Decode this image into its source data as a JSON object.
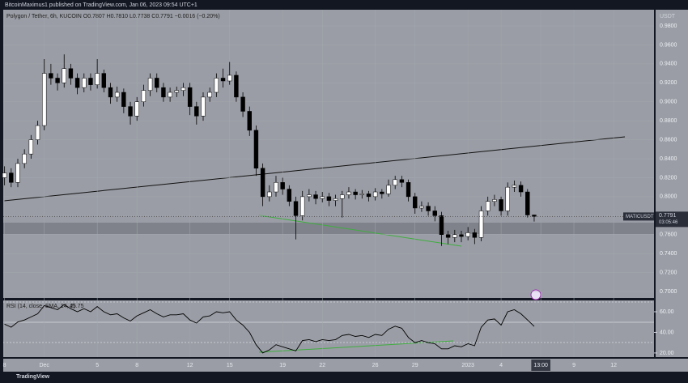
{
  "header": "BitcoinMaximus1 published on TradingView.com, Jan 06, 2023 09:54 UTC+1",
  "footer": "TradingView",
  "chart_data": [
    {
      "type": "candlestick",
      "title": "Polygon / Tether, 6h, KUCOIN  O0.7807  H0.7810  L0.7738  C0.7791  −0.0016 (−0.20%)",
      "axis_unit": "USDT",
      "symbol_label": "MATICUSDT",
      "last_price_label": "0.7791",
      "countdown_label": "03:05:46",
      "up_color": "#ffffff",
      "down_color": "#000000",
      "ohlc": [
        [
          0.82,
          0.832,
          0.812,
          0.825
        ],
        [
          0.825,
          0.83,
          0.81,
          0.815
        ],
        [
          0.815,
          0.84,
          0.81,
          0.835
        ],
        [
          0.835,
          0.85,
          0.83,
          0.845
        ],
        [
          0.845,
          0.865,
          0.84,
          0.86
        ],
        [
          0.86,
          0.88,
          0.855,
          0.875
        ],
        [
          0.875,
          0.945,
          0.87,
          0.93
        ],
        [
          0.93,
          0.94,
          0.918,
          0.925
        ],
        [
          0.925,
          0.93,
          0.912,
          0.92
        ],
        [
          0.92,
          0.95,
          0.915,
          0.935
        ],
        [
          0.935,
          0.94,
          0.918,
          0.925
        ],
        [
          0.925,
          0.93,
          0.908,
          0.915
        ],
        [
          0.915,
          0.93,
          0.91,
          0.925
        ],
        [
          0.925,
          0.93,
          0.912,
          0.918
        ],
        [
          0.918,
          0.945,
          0.914,
          0.93
        ],
        [
          0.93,
          0.934,
          0.91,
          0.915
        ],
        [
          0.915,
          0.92,
          0.898,
          0.905
        ],
        [
          0.905,
          0.916,
          0.9,
          0.91
        ],
        [
          0.91,
          0.914,
          0.888,
          0.895
        ],
        [
          0.895,
          0.9,
          0.876,
          0.885
        ],
        [
          0.885,
          0.905,
          0.88,
          0.9
        ],
        [
          0.9,
          0.918,
          0.895,
          0.912
        ],
        [
          0.912,
          0.93,
          0.906,
          0.925
        ],
        [
          0.925,
          0.93,
          0.91,
          0.915
        ],
        [
          0.915,
          0.92,
          0.9,
          0.905
        ],
        [
          0.905,
          0.915,
          0.9,
          0.91
        ],
        [
          0.91,
          0.916,
          0.905,
          0.912
        ],
        [
          0.912,
          0.92,
          0.906,
          0.915
        ],
        [
          0.915,
          0.92,
          0.886,
          0.895
        ],
        [
          0.895,
          0.9,
          0.876,
          0.885
        ],
        [
          0.885,
          0.91,
          0.88,
          0.905
        ],
        [
          0.905,
          0.915,
          0.9,
          0.91
        ],
        [
          0.91,
          0.93,
          0.905,
          0.925
        ],
        [
          0.925,
          0.935,
          0.915,
          0.922
        ],
        [
          0.922,
          0.942,
          0.918,
          0.928
        ],
        [
          0.928,
          0.932,
          0.9,
          0.905
        ],
        [
          0.905,
          0.91,
          0.884,
          0.89
        ],
        [
          0.89,
          0.895,
          0.864,
          0.87
        ],
        [
          0.87,
          0.875,
          0.822,
          0.83
        ],
        [
          0.83,
          0.835,
          0.79,
          0.8
        ],
        [
          0.8,
          0.812,
          0.795,
          0.805
        ],
        [
          0.805,
          0.822,
          0.8,
          0.815
        ],
        [
          0.815,
          0.82,
          0.802,
          0.808
        ],
        [
          0.808,
          0.812,
          0.79,
          0.795
        ],
        [
          0.795,
          0.8,
          0.755,
          0.78
        ],
        [
          0.78,
          0.806,
          0.775,
          0.8
        ],
        [
          0.8,
          0.808,
          0.795,
          0.802
        ],
        [
          0.802,
          0.806,
          0.792,
          0.798
        ],
        [
          0.798,
          0.805,
          0.794,
          0.8
        ],
        [
          0.8,
          0.804,
          0.79,
          0.796
        ],
        [
          0.796,
          0.802,
          0.79,
          0.798
        ],
        [
          0.798,
          0.806,
          0.778,
          0.802
        ],
        [
          0.802,
          0.81,
          0.798,
          0.805
        ],
        [
          0.805,
          0.808,
          0.797,
          0.802
        ],
        [
          0.802,
          0.807,
          0.798,
          0.803
        ],
        [
          0.803,
          0.806,
          0.795,
          0.8
        ],
        [
          0.8,
          0.809,
          0.796,
          0.805
        ],
        [
          0.805,
          0.808,
          0.798,
          0.803
        ],
        [
          0.803,
          0.818,
          0.8,
          0.812
        ],
        [
          0.812,
          0.822,
          0.808,
          0.818
        ],
        [
          0.818,
          0.822,
          0.81,
          0.815
        ],
        [
          0.815,
          0.818,
          0.795,
          0.8
        ],
        [
          0.8,
          0.804,
          0.782,
          0.788
        ],
        [
          0.788,
          0.795,
          0.784,
          0.79
        ],
        [
          0.79,
          0.794,
          0.78,
          0.785
        ],
        [
          0.785,
          0.79,
          0.774,
          0.78
        ],
        [
          0.78,
          0.784,
          0.748,
          0.76
        ],
        [
          0.76,
          0.764,
          0.75,
          0.757
        ],
        [
          0.757,
          0.765,
          0.752,
          0.76
        ],
        [
          0.76,
          0.764,
          0.752,
          0.758
        ],
        [
          0.758,
          0.768,
          0.754,
          0.762
        ],
        [
          0.762,
          0.766,
          0.75,
          0.757
        ],
        [
          0.757,
          0.79,
          0.753,
          0.785
        ],
        [
          0.785,
          0.8,
          0.78,
          0.795
        ],
        [
          0.795,
          0.802,
          0.79,
          0.797
        ],
        [
          0.797,
          0.8,
          0.78,
          0.785
        ],
        [
          0.785,
          0.815,
          0.78,
          0.81
        ],
        [
          0.81,
          0.817,
          0.805,
          0.812
        ],
        [
          0.812,
          0.816,
          0.8,
          0.805
        ],
        [
          0.805,
          0.808,
          0.778,
          0.7807
        ],
        [
          0.7807,
          0.781,
          0.7738,
          0.7791
        ]
      ],
      "xlim": [
        -0.2,
        98.1
      ],
      "xticks": [
        {
          "value": 0,
          "label": "8"
        },
        {
          "value": 6,
          "label": "Dec"
        },
        {
          "value": 14,
          "label": "5"
        },
        {
          "value": 20,
          "label": "8"
        },
        {
          "value": 28,
          "label": "12"
        },
        {
          "value": 34,
          "label": "15"
        },
        {
          "value": 42,
          "label": "19"
        },
        {
          "value": 48,
          "label": "22"
        },
        {
          "value": 56,
          "label": "26"
        },
        {
          "value": 62,
          "label": "29"
        },
        {
          "value": 70,
          "label": "2023"
        },
        {
          "value": 75,
          "label": "4"
        },
        {
          "value": 81,
          "label": "13:00"
        },
        {
          "value": 86,
          "label": "9"
        },
        {
          "value": 92,
          "label": "12"
        }
      ],
      "ylim": [
        0.6932,
        0.9971
      ],
      "yticks": [
        {
          "value": 0.98,
          "label": "0.9800"
        },
        {
          "value": 0.96,
          "label": "0.9600"
        },
        {
          "value": 0.94,
          "label": "0.9400"
        },
        {
          "value": 0.92,
          "label": "0.9200"
        },
        {
          "value": 0.9,
          "label": "0.9000"
        },
        {
          "value": 0.88,
          "label": "0.8800"
        },
        {
          "value": 0.86,
          "label": "0.8600"
        },
        {
          "value": 0.84,
          "label": "0.8400"
        },
        {
          "value": 0.82,
          "label": "0.8200"
        },
        {
          "value": 0.8,
          "label": "0.8000"
        },
        {
          "value": 0.78,
          "label": "0.7800"
        },
        {
          "value": 0.76,
          "label": "0.7600"
        },
        {
          "value": 0.74,
          "label": "0.7400"
        },
        {
          "value": 0.72,
          "label": "0.7200"
        },
        {
          "value": 0.7,
          "label": "0.7000"
        }
      ]
    },
    {
      "type": "line",
      "title": "RSI (14, close, SMA, 14, 2)",
      "color": "#000000",
      "values": [
        48,
        45,
        50,
        52,
        55,
        58,
        66,
        64,
        62,
        67,
        63,
        60,
        63,
        60,
        65,
        60,
        57,
        58,
        54,
        51,
        56,
        59,
        62,
        58,
        55,
        57,
        57,
        58,
        52,
        49,
        55,
        56,
        60,
        59,
        60,
        52,
        47,
        40,
        28,
        20,
        23,
        28,
        26,
        24,
        22,
        32,
        33,
        31,
        33,
        32,
        33,
        37,
        38,
        36,
        37,
        35,
        38,
        37,
        43,
        46,
        44,
        35,
        30,
        32,
        30,
        29,
        24,
        24,
        27,
        26,
        29,
        27,
        45,
        52,
        53,
        47,
        60,
        62,
        58,
        52,
        45.75
      ],
      "ylim": [
        16,
        71
      ],
      "yticks": [
        {
          "value": 60,
          "label": "60.00"
        },
        {
          "value": 40,
          "label": "40.00"
        },
        {
          "value": 20,
          "label": "20.00"
        }
      ]
    }
  ]
}
